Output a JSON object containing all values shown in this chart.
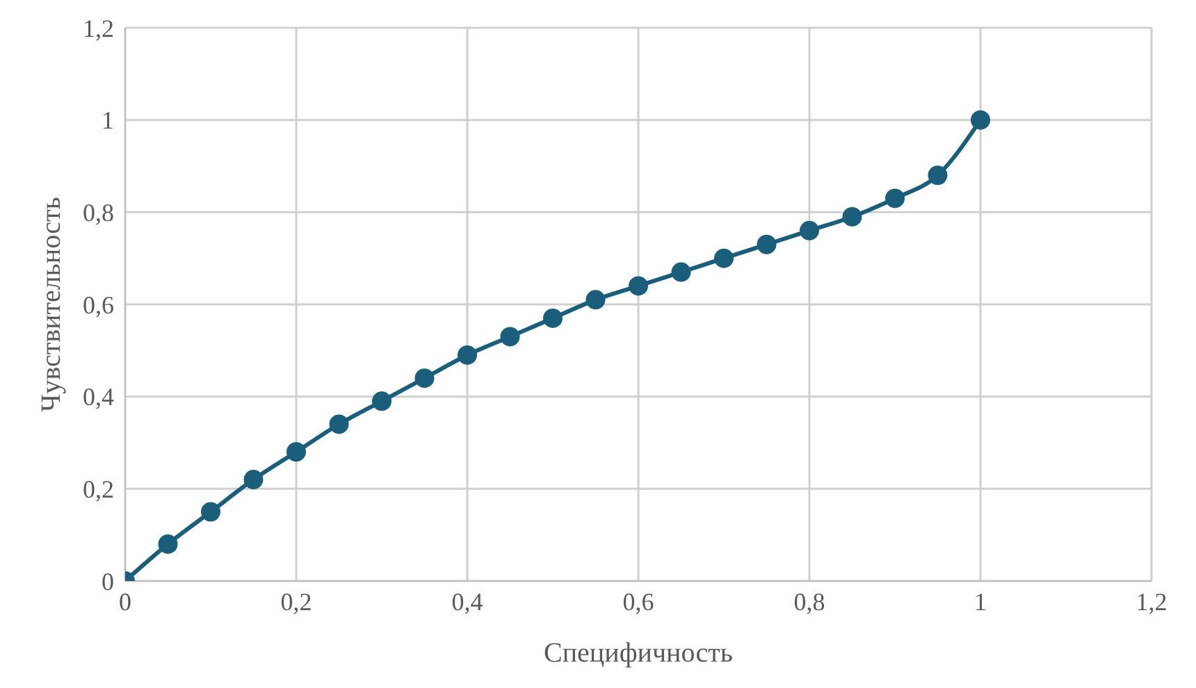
{
  "chart_data": {
    "type": "line",
    "xlabel": "Специфичность",
    "ylabel": "Чувствительность",
    "x": [
      0,
      0.05,
      0.1,
      0.15,
      0.2,
      0.25,
      0.3,
      0.35,
      0.4,
      0.45,
      0.5,
      0.55,
      0.6,
      0.65,
      0.7,
      0.75,
      0.8,
      0.85,
      0.9,
      0.95,
      1
    ],
    "series": [
      {
        "color": "#1b5e7b",
        "values": [
          0,
          0.08,
          0.15,
          0.22,
          0.28,
          0.34,
          0.39,
          0.44,
          0.49,
          0.53,
          0.57,
          0.61,
          0.64,
          0.67,
          0.7,
          0.73,
          0.76,
          0.79,
          0.83,
          0.88,
          1
        ]
      }
    ],
    "xlim": [
      0,
      1.2
    ],
    "xticks": [
      {
        "value": 0,
        "label": "0"
      },
      {
        "value": 0.2,
        "label": "0,2"
      },
      {
        "value": 0.4,
        "label": "0,4"
      },
      {
        "value": 0.6,
        "label": "0,6"
      },
      {
        "value": 0.8,
        "label": "0,8"
      },
      {
        "value": 1,
        "label": "1"
      },
      {
        "value": 1.2,
        "label": "1,2"
      }
    ],
    "ylim": [
      0,
      1.2
    ],
    "yticks": [
      {
        "value": 0,
        "label": "0"
      },
      {
        "value": 0.2,
        "label": "0,2"
      },
      {
        "value": 0.4,
        "label": "0,4"
      },
      {
        "value": 0.6,
        "label": "0,6"
      },
      {
        "value": 0.8,
        "label": "0,8"
      },
      {
        "value": 1,
        "label": "1"
      },
      {
        "value": 1.2,
        "label": "1,2"
      }
    ],
    "grid": true,
    "marker": "circle",
    "line_style": "solid"
  }
}
